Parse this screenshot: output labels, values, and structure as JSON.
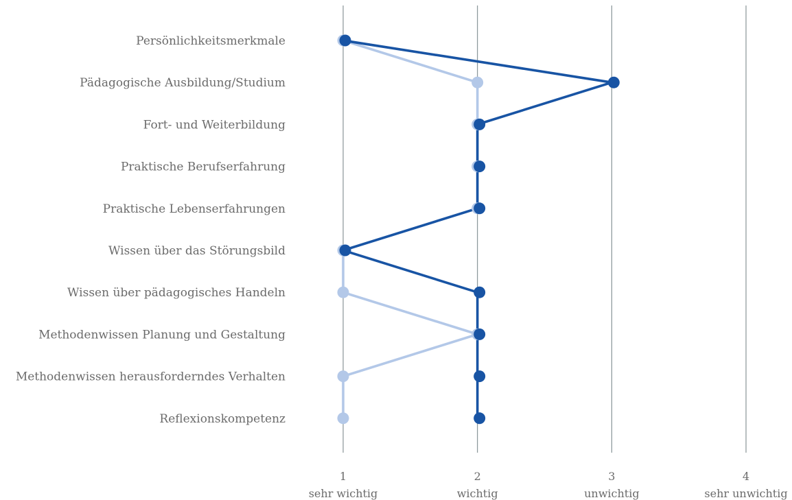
{
  "chart_data": {
    "type": "line",
    "orientation": "horizontal",
    "categories": [
      "Persönlichkeitsmerkmale",
      "Pädagogische Ausbildung/Studium",
      "Fort- und Weiterbildung",
      "Praktische Berufserfahrung",
      "Praktische Lebenserfahrungen",
      "Wissen über das Störungsbild",
      "Wissen über pädagogisches Handeln",
      "Methodenwissen Planung und Gestaltung",
      "Methodenwissen herausforderndes Verhalten",
      "Reflexionskompetenz"
    ],
    "series": [
      {
        "color": "#b3c8e8",
        "values": [
          1,
          2,
          2,
          2,
          2,
          1,
          1,
          2,
          1,
          1
        ]
      },
      {
        "color": "#1854a4",
        "values": [
          1,
          3,
          2,
          2,
          2,
          1,
          2,
          2,
          2,
          2
        ]
      }
    ],
    "xlim": [
      1,
      4
    ],
    "x_ticks": [
      {
        "value": 1,
        "number": "1",
        "label": "sehr wichtig"
      },
      {
        "value": 2,
        "number": "2",
        "label": "wichtig"
      },
      {
        "value": 3,
        "number": "3",
        "label": "unwichtig"
      },
      {
        "value": 4,
        "number": "4",
        "label": "sehr unwichtig"
      }
    ],
    "grid": true,
    "legend": "none"
  }
}
